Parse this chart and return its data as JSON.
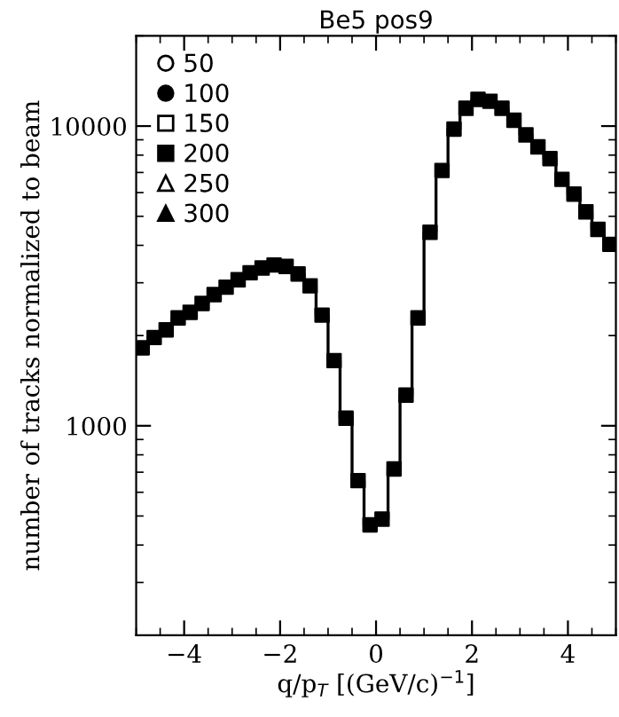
{
  "chart_data": {
    "type": "scatter",
    "title": "Be5 pos9",
    "xlabel": "q/p$_{T}$ [(GeV/c)$^{−1}$]",
    "ylabel": "number of tracks normalized to beam",
    "log": "y",
    "xlim": [
      -5,
      5
    ],
    "ylim": [
      200,
      20000
    ],
    "xticks": [
      -4,
      -2,
      0,
      2,
      4
    ],
    "yticks": [
      1000,
      10000
    ],
    "legend": "top left",
    "x": [
      -4.875,
      -4.625,
      -4.375,
      -4.125,
      -3.875,
      -3.625,
      -3.375,
      -3.125,
      -2.875,
      -2.625,
      -2.375,
      -2.125,
      -1.875,
      -1.625,
      -1.375,
      -1.125,
      -0.875,
      -0.625,
      -0.375,
      -0.125,
      0.125,
      0.375,
      0.625,
      0.875,
      1.125,
      1.375,
      1.625,
      1.875,
      2.125,
      2.375,
      2.625,
      2.875,
      3.125,
      3.375,
      3.625,
      3.875,
      4.125,
      4.375,
      4.625,
      4.875
    ],
    "series": [
      {
        "type": "step",
        "color": "#000000",
        "values": [
          1820,
          1970,
          2090,
          2290,
          2390,
          2560,
          2740,
          2900,
          3070,
          3240,
          3360,
          3440,
          3400,
          3210,
          2930,
          2340,
          1650,
          1060,
          656,
          467,
          488,
          718,
          1265,
          2290,
          4420,
          7110,
          9770,
          11460,
          12270,
          12100,
          11460,
          10460,
          9340,
          8520,
          7790,
          6640,
          5930,
          5170,
          4520,
          4030
        ]
      },
      {
        "name": "50",
        "marker": "circle",
        "color": "#ffffff",
        "values": [
          null,
          null,
          null,
          null,
          null,
          null,
          null,
          null,
          null,
          null,
          null,
          null,
          null,
          null,
          null,
          null,
          null,
          null,
          null,
          null,
          null,
          null,
          null,
          null,
          null,
          null,
          null,
          null,
          null,
          null,
          null,
          null,
          null,
          null,
          null,
          null,
          null,
          null,
          null,
          null
        ]
      },
      {
        "name": "100",
        "marker": "circle",
        "color": "#000000",
        "values": [
          null,
          null,
          null,
          null,
          null,
          null,
          null,
          null,
          null,
          null,
          null,
          null,
          null,
          null,
          null,
          null,
          null,
          null,
          null,
          null,
          null,
          null,
          null,
          null,
          null,
          null,
          null,
          null,
          null,
          null,
          null,
          null,
          null,
          null,
          null,
          null,
          null,
          null,
          null,
          null
        ]
      },
      {
        "name": "150",
        "marker": "square",
        "color": "#ffffff",
        "values": [
          null,
          null,
          null,
          null,
          null,
          null,
          null,
          null,
          null,
          null,
          null,
          null,
          null,
          null,
          null,
          null,
          null,
          null,
          null,
          null,
          null,
          null,
          null,
          null,
          null,
          null,
          null,
          null,
          null,
          null,
          null,
          null,
          null,
          null,
          null,
          null,
          null,
          null,
          null,
          null
        ]
      },
      {
        "name": "200",
        "marker": "square",
        "color": "#000000",
        "values": [
          1820,
          1970,
          2090,
          2290,
          2390,
          2560,
          2740,
          2900,
          3070,
          3240,
          3360,
          3440,
          3400,
          3210,
          2930,
          2340,
          1650,
          1060,
          656,
          467,
          488,
          718,
          1265,
          2290,
          4420,
          7110,
          9770,
          11460,
          12270,
          12100,
          11460,
          10460,
          9340,
          8520,
          7790,
          6640,
          5930,
          5170,
          4520,
          4030
        ]
      },
      {
        "name": "250",
        "marker": "triangle",
        "color": "#ffffff",
        "values": [
          null,
          null,
          null,
          null,
          null,
          null,
          null,
          null,
          null,
          null,
          null,
          null,
          null,
          null,
          null,
          null,
          null,
          null,
          null,
          null,
          null,
          null,
          null,
          null,
          null,
          null,
          null,
          null,
          null,
          null,
          null,
          null,
          null,
          null,
          null,
          null,
          null,
          null,
          null,
          null
        ]
      },
      {
        "name": "300",
        "marker": "triangle",
        "color": "#000000",
        "values": [
          null,
          null,
          null,
          null,
          null,
          null,
          null,
          null,
          null,
          null,
          null,
          null,
          null,
          null,
          null,
          null,
          null,
          null,
          null,
          null,
          null,
          null,
          null,
          null,
          null,
          null,
          null,
          null,
          null,
          null,
          null,
          null,
          null,
          null,
          null,
          null,
          null,
          null,
          null,
          null
        ]
      }
    ]
  }
}
